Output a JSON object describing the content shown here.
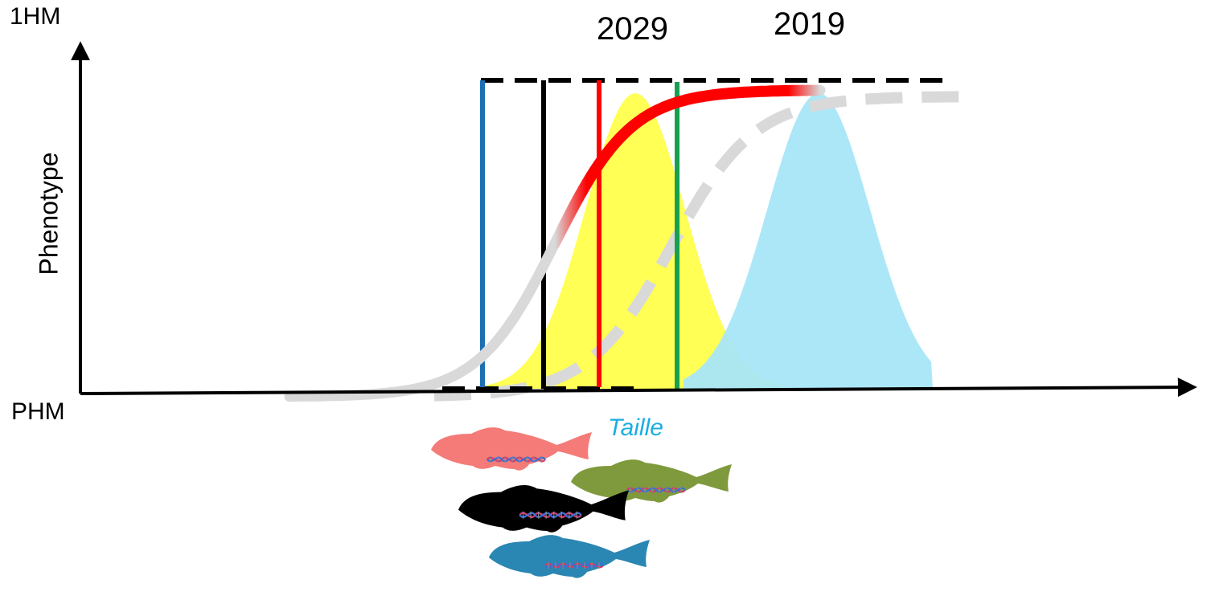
{
  "labels": {
    "y_top": "1HM",
    "y_bottom": "PHM",
    "y_axis": "Phenotype",
    "x_axis": "Taille",
    "year_left": "2029",
    "year_right": "2019"
  },
  "colors": {
    "axis": "#000000",
    "x_axis_label": "#1aaee0",
    "yellow_distribution": "#ffff55",
    "blue_distribution": "#a8e6f8",
    "red_curve": "#ff0000",
    "grey_curve": "#d9d9d9",
    "vline_blue": "#1b6fb2",
    "vline_black": "#000000",
    "vline_red": "#ff0000",
    "vline_green": "#16a050",
    "fish_pink": "#f47b78",
    "fish_olive": "#7f9a3c",
    "fish_black": "#000000",
    "fish_teal": "#2a86b2"
  },
  "icons": [
    "fish-pink-icon",
    "fish-olive-icon",
    "fish-black-icon",
    "fish-teal-icon",
    "dna-icon"
  ]
}
